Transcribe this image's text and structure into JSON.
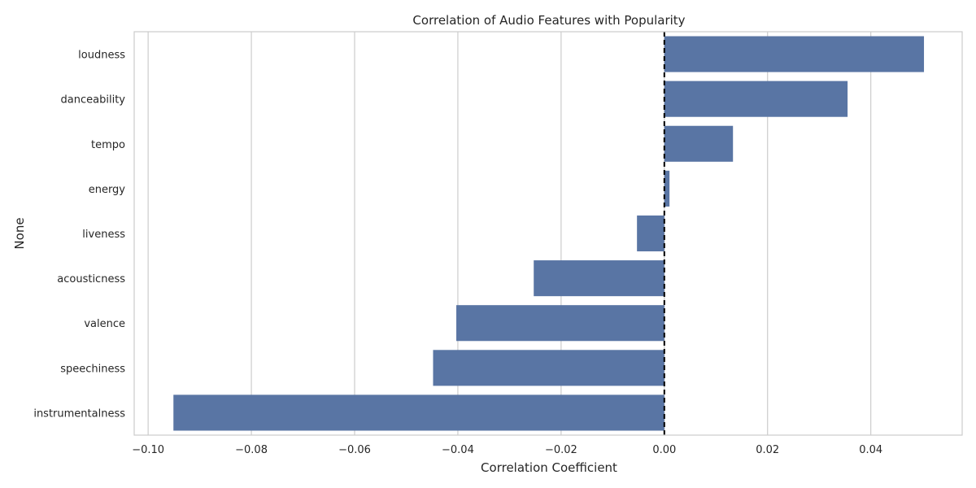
{
  "chart_data": {
    "type": "bar",
    "orientation": "horizontal",
    "title": "Correlation of Audio Features with Popularity",
    "xlabel": "Correlation Coefficient",
    "ylabel": "None",
    "categories": [
      "loudness",
      "danceability",
      "tempo",
      "energy",
      "liveness",
      "acousticness",
      "valence",
      "speechiness",
      "instrumentalness"
    ],
    "values": [
      0.0503,
      0.0355,
      0.0133,
      0.001,
      -0.0053,
      -0.0253,
      -0.0403,
      -0.0448,
      -0.0951
    ],
    "xlim": [
      -0.1027,
      0.0577
    ],
    "xticks": [
      -0.1,
      -0.08,
      -0.06,
      -0.04,
      -0.02,
      0.0,
      0.02,
      0.04
    ],
    "xtick_labels": [
      "−0.10",
      "−0.08",
      "−0.06",
      "−0.04",
      "−0.02",
      "0.00",
      "0.02",
      "0.04"
    ],
    "reference_line": {
      "x": 0,
      "style": "dashed",
      "color": "#000000"
    },
    "grid": "x",
    "legend": "none",
    "bar_color": "#5975a4",
    "grid_color": "#cccccc",
    "spine_color": "#cccccc"
  }
}
